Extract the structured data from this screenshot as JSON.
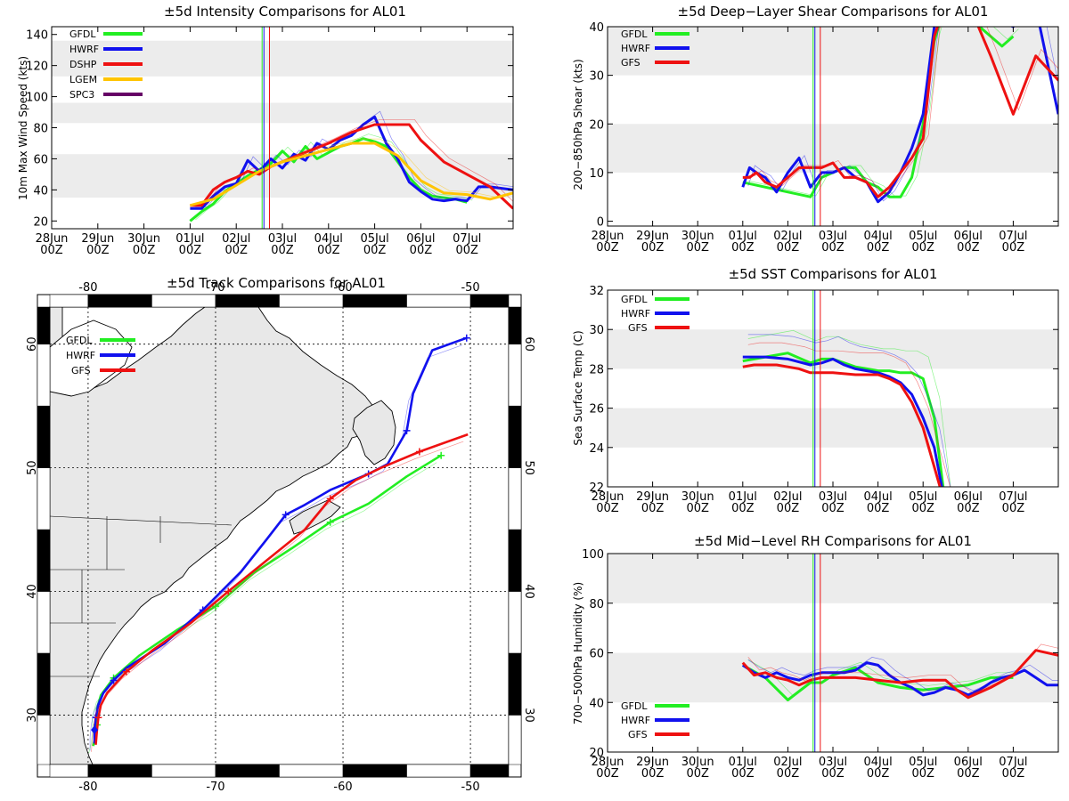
{
  "colors": {
    "GFDL": "#22ee22",
    "HWRF": "#1111ee",
    "DSHP": "#ee1111",
    "GFS": "#ee1111",
    "LGEM": "#ffc400",
    "SPC3": "#660066",
    "band": "#ececec",
    "land": "#e8e8e8"
  },
  "time_ticks": [
    {
      "day": "28Jun",
      "hour": "00Z"
    },
    {
      "day": "29Jun",
      "hour": "00Z"
    },
    {
      "day": "30Jun",
      "hour": "00Z"
    },
    {
      "day": "01Jul",
      "hour": "00Z"
    },
    {
      "day": "02Jul",
      "hour": "00Z"
    },
    {
      "day": "03Jul",
      "hour": "00Z"
    },
    {
      "day": "04Jul",
      "hour": "00Z"
    },
    {
      "day": "05Jul",
      "hour": "00Z"
    },
    {
      "day": "06Jul",
      "hour": "00Z"
    },
    {
      "day": "07Jul",
      "hour": "00Z"
    }
  ],
  "chart_data": [
    {
      "id": "intensity",
      "type": "line",
      "title": "±5d Intensity Comparisons for AL01",
      "ylabel": "10m Max Wind Speed (kts)",
      "xlim": [
        0,
        10
      ],
      "ylim": [
        15,
        145
      ],
      "yticks": [
        20,
        40,
        60,
        80,
        100,
        120,
        140
      ],
      "bands": [
        [
          35,
          63
        ],
        [
          83,
          96
        ],
        [
          113,
          136
        ]
      ],
      "vlines": [
        {
          "x": 4.56,
          "color": "GFDL"
        },
        {
          "x": 4.6,
          "color": "HWRF"
        },
        {
          "x": 4.72,
          "color": "DSHP"
        }
      ],
      "legend": [
        "GFDL",
        "HWRF",
        "DSHP",
        "LGEM",
        "SPC3"
      ],
      "series": [
        {
          "name": "GFDL",
          "x": [
            3,
            3.25,
            3.5,
            3.75,
            4,
            4.25,
            4.5,
            4.75,
            5,
            5.25,
            5.5,
            5.75,
            6,
            6.25,
            6.5,
            6.75,
            7,
            7.25,
            7.5,
            7.75,
            8,
            8.25,
            8.5,
            8.75,
            9
          ],
          "values": [
            20,
            26,
            31,
            39,
            44,
            49,
            53,
            57,
            65,
            58,
            68,
            60,
            64,
            68,
            70,
            73,
            71,
            68,
            58,
            48,
            40,
            36,
            35,
            34,
            32
          ]
        },
        {
          "name": "HWRF",
          "x": [
            3,
            3.25,
            3.5,
            3.75,
            4,
            4.25,
            4.5,
            4.75,
            5,
            5.25,
            5.5,
            5.75,
            6,
            6.25,
            6.5,
            6.75,
            7,
            7.25,
            7.5,
            7.75,
            8,
            8.25,
            8.5,
            8.75,
            9,
            9.25,
            9.5,
            9.75,
            10
          ],
          "values": [
            28,
            28,
            36,
            42,
            44,
            59,
            52,
            60,
            54,
            63,
            59,
            70,
            66,
            72,
            75,
            82,
            87,
            70,
            60,
            45,
            39,
            34,
            33,
            34,
            33,
            42,
            42,
            41,
            40
          ]
        },
        {
          "name": "DSHP",
          "x": [
            3,
            3.25,
            3.5,
            3.75,
            4,
            4.25,
            4.5,
            4.75,
            5,
            5.5,
            6,
            6.5,
            7,
            7.5,
            7.75,
            8,
            8.5,
            9,
            9.5,
            10
          ],
          "values": [
            30,
            30,
            40,
            45,
            48,
            52,
            50,
            55,
            58,
            64,
            70,
            77,
            82,
            82,
            82,
            72,
            58,
            50,
            42,
            28
          ]
        },
        {
          "name": "LGEM",
          "x": [
            3,
            3.5,
            4,
            4.5,
            5,
            5.5,
            6,
            6.5,
            7,
            7.5,
            8,
            8.5,
            9,
            9.5,
            10
          ],
          "values": [
            30,
            34,
            43,
            52,
            58,
            62,
            66,
            70,
            70,
            62,
            46,
            38,
            37,
            34,
            38
          ]
        }
      ]
    },
    {
      "id": "shear",
      "type": "line",
      "title": "±5d Deep−Layer Shear Comparisons for AL01",
      "ylabel": "200−850hPa Shear (kts)",
      "xlim": [
        0,
        10
      ],
      "ylim": [
        -1,
        40
      ],
      "yticks": [
        0,
        10,
        20,
        30,
        40
      ],
      "bands": [
        [
          10,
          20
        ],
        [
          30,
          40
        ]
      ],
      "vlines": [
        {
          "x": 4.56,
          "color": "GFDL"
        },
        {
          "x": 4.6,
          "color": "HWRF"
        },
        {
          "x": 4.72,
          "color": "GFS"
        }
      ],
      "legend": [
        "GFDL",
        "HWRF",
        "GFS"
      ],
      "series": [
        {
          "name": "GFDL",
          "x": [
            3,
            4.5,
            4.75,
            5,
            5.25,
            5.5,
            5.75,
            6,
            6.25,
            6.5,
            6.75,
            7,
            7.25,
            7.5,
            7.75,
            8,
            8.25,
            8.5,
            8.75,
            9
          ],
          "values": [
            8,
            5,
            9,
            10,
            11,
            11,
            8,
            7,
            5,
            5,
            9,
            20,
            37,
            45,
            45,
            45,
            40,
            38,
            36,
            38
          ]
        },
        {
          "name": "HWRF",
          "x": [
            3,
            3.15,
            3.3,
            3.5,
            3.75,
            4,
            4.25,
            4.5,
            4.75,
            5,
            5.25,
            5.5,
            5.75,
            6,
            6.25,
            6.5,
            6.75,
            7,
            7.25,
            7.5,
            8,
            8.5,
            9,
            9.5,
            10
          ],
          "values": [
            7,
            11,
            10,
            9,
            6,
            10,
            13,
            7,
            10,
            10,
            11,
            9,
            8,
            4,
            6,
            10,
            15,
            22,
            40,
            45,
            45,
            42,
            40,
            44,
            22
          ]
        },
        {
          "name": "GFS",
          "x": [
            3,
            3.15,
            3.3,
            3.5,
            3.75,
            4,
            4.25,
            4.5,
            4.75,
            5,
            5.25,
            5.5,
            5.75,
            6,
            6.25,
            6.5,
            6.75,
            7,
            7.25,
            7.5,
            8,
            8.5,
            9,
            9.5,
            10
          ],
          "values": [
            9,
            9,
            10,
            8,
            7,
            9,
            11,
            11,
            11,
            12,
            9,
            9,
            8,
            5,
            7,
            10,
            13,
            17,
            38,
            45,
            45,
            34,
            22,
            34,
            29
          ]
        }
      ]
    },
    {
      "id": "sst",
      "type": "line",
      "title": "±5d SST Comparisons for AL01",
      "ylabel": "Sea Surface Temp (C)",
      "xlim": [
        0,
        10
      ],
      "ylim": [
        22,
        32
      ],
      "yticks": [
        22,
        24,
        26,
        28,
        30,
        32
      ],
      "bands": [
        [
          24,
          26
        ],
        [
          28,
          30
        ]
      ],
      "vlines": [
        {
          "x": 4.56,
          "color": "GFDL"
        },
        {
          "x": 4.6,
          "color": "HWRF"
        },
        {
          "x": 4.72,
          "color": "GFS"
        }
      ],
      "legend": [
        "GFDL",
        "HWRF",
        "GFS"
      ],
      "series": [
        {
          "name": "GFDL",
          "x": [
            3,
            3.5,
            4,
            4.5,
            4.75,
            5,
            5.25,
            5.5,
            5.75,
            6,
            6.25,
            6.5,
            6.75,
            7,
            7.25,
            7.5
          ],
          "values": [
            28.4,
            28.6,
            28.8,
            28.3,
            28.5,
            28.5,
            28.3,
            28.1,
            28,
            27.9,
            27.9,
            27.8,
            27.8,
            27.5,
            25.5,
            21
          ]
        },
        {
          "name": "HWRF",
          "x": [
            3,
            3.5,
            4,
            4.5,
            4.75,
            5,
            5.25,
            5.5,
            5.75,
            6,
            6.25,
            6.5,
            6.75,
            7,
            7.25,
            7.5
          ],
          "values": [
            28.6,
            28.6,
            28.5,
            28.2,
            28.3,
            28.5,
            28.2,
            28,
            27.9,
            27.8,
            27.6,
            27.3,
            26.7,
            25.5,
            24,
            21
          ]
        },
        {
          "name": "GFS",
          "x": [
            3,
            3.25,
            3.5,
            3.75,
            4,
            4.25,
            4.5,
            4.75,
            5,
            5.5,
            6,
            6.25,
            6.5,
            6.75,
            7,
            7.5
          ],
          "values": [
            28.1,
            28.2,
            28.2,
            28.2,
            28.1,
            28,
            27.8,
            27.8,
            27.8,
            27.7,
            27.7,
            27.5,
            27.2,
            26.3,
            25,
            21
          ]
        }
      ]
    },
    {
      "id": "rh",
      "type": "line",
      "title": "±5d Mid−Level RH Comparisons for AL01",
      "ylabel": "700−500hPa Humidity (%)",
      "xlim": [
        0,
        10
      ],
      "ylim": [
        20,
        100
      ],
      "yticks": [
        20,
        40,
        60,
        80,
        100
      ],
      "bands": [
        [
          40,
          60
        ],
        [
          80,
          100
        ]
      ],
      "vlines": [
        {
          "x": 4.56,
          "color": "GFDL"
        },
        {
          "x": 4.6,
          "color": "HWRF"
        },
        {
          "x": 4.72,
          "color": "GFS"
        }
      ],
      "legend": [
        "GFDL",
        "HWRF",
        "GFS"
      ],
      "series": [
        {
          "name": "GFDL",
          "x": [
            3,
            3.5,
            4,
            4.5,
            4.75,
            5,
            5.5,
            6,
            6.5,
            7,
            7.5,
            8,
            8.5,
            9
          ],
          "values": [
            55,
            50,
            41,
            48,
            48,
            51,
            54,
            48,
            46,
            45,
            46,
            47,
            50,
            50
          ]
        },
        {
          "name": "HWRF",
          "x": [
            3,
            3.25,
            3.5,
            3.75,
            4,
            4.25,
            4.5,
            4.75,
            5,
            5.25,
            5.5,
            5.75,
            6,
            6.25,
            6.5,
            6.75,
            7,
            7.25,
            7.5,
            7.75,
            8,
            8.25,
            8.5,
            8.75,
            9,
            9.25,
            9.5,
            9.75,
            10
          ],
          "values": [
            55,
            52,
            50,
            52,
            50,
            49,
            51,
            52,
            52,
            52,
            53,
            56,
            55,
            51,
            48,
            46,
            43,
            44,
            46,
            45,
            43,
            45,
            48,
            50,
            51,
            53,
            50,
            47,
            47
          ]
        },
        {
          "name": "GFS",
          "x": [
            3,
            3.25,
            3.5,
            3.75,
            4,
            4.25,
            4.5,
            4.75,
            5,
            5.5,
            6,
            6.5,
            7,
            7.5,
            7.75,
            8,
            8.5,
            9,
            9.5,
            10
          ],
          "values": [
            56,
            51,
            52,
            50,
            49,
            47,
            49,
            50,
            50,
            50,
            49,
            48,
            49,
            49,
            45,
            42,
            46,
            51,
            61,
            59
          ]
        }
      ]
    },
    {
      "id": "track",
      "type": "line",
      "title": "±5d Track Comparisons for AL01",
      "xlim": [
        -83,
        -47
      ],
      "ylim": [
        26,
        63
      ],
      "xticks": [
        -80,
        -70,
        -60,
        -50
      ],
      "yticks": [
        30,
        40,
        50,
        60
      ],
      "legend": [
        "GFDL",
        "HWRF",
        "GFS"
      ],
      "series": [
        {
          "name": "GFDL",
          "x": [
            -79.6,
            -79.4,
            -79.3,
            -79.3,
            -79,
            -78,
            -76,
            -73,
            -70,
            -67,
            -64,
            -61,
            -58,
            -55,
            -52.3
          ],
          "y": [
            27.5,
            28.3,
            29.2,
            30.5,
            31.6,
            33,
            34.8,
            36.9,
            38.8,
            41.5,
            43.5,
            45.6,
            47.1,
            49.3,
            51
          ]
        },
        {
          "name": "HWRF",
          "x": [
            -79.5,
            -79.5,
            -79.4,
            -79.2,
            -78.8,
            -78,
            -77,
            -74,
            -71,
            -68,
            -66,
            -64.5,
            -63,
            -61,
            -58,
            -56.5,
            -56,
            -55,
            -54.5,
            -53,
            -50.3
          ],
          "y": [
            27.7,
            28.8,
            29.8,
            30.8,
            31.8,
            32.8,
            33.8,
            35.8,
            38.5,
            41.6,
            44.2,
            46.2,
            47,
            48.2,
            49.5,
            50.3,
            51.2,
            53,
            56,
            59.5,
            60.5
          ]
        },
        {
          "name": "GFS",
          "x": [
            -79.4,
            -79.3,
            -79.2,
            -79,
            -78.5,
            -77,
            -75,
            -72,
            -69,
            -66,
            -63,
            -61,
            -59,
            -57,
            -54,
            -50.2
          ],
          "y": [
            27.6,
            28.8,
            29.8,
            30.8,
            31.8,
            33.5,
            35.2,
            37.4,
            40,
            42.5,
            45,
            47.5,
            49,
            50,
            51.3,
            52.7
          ]
        }
      ]
    }
  ]
}
